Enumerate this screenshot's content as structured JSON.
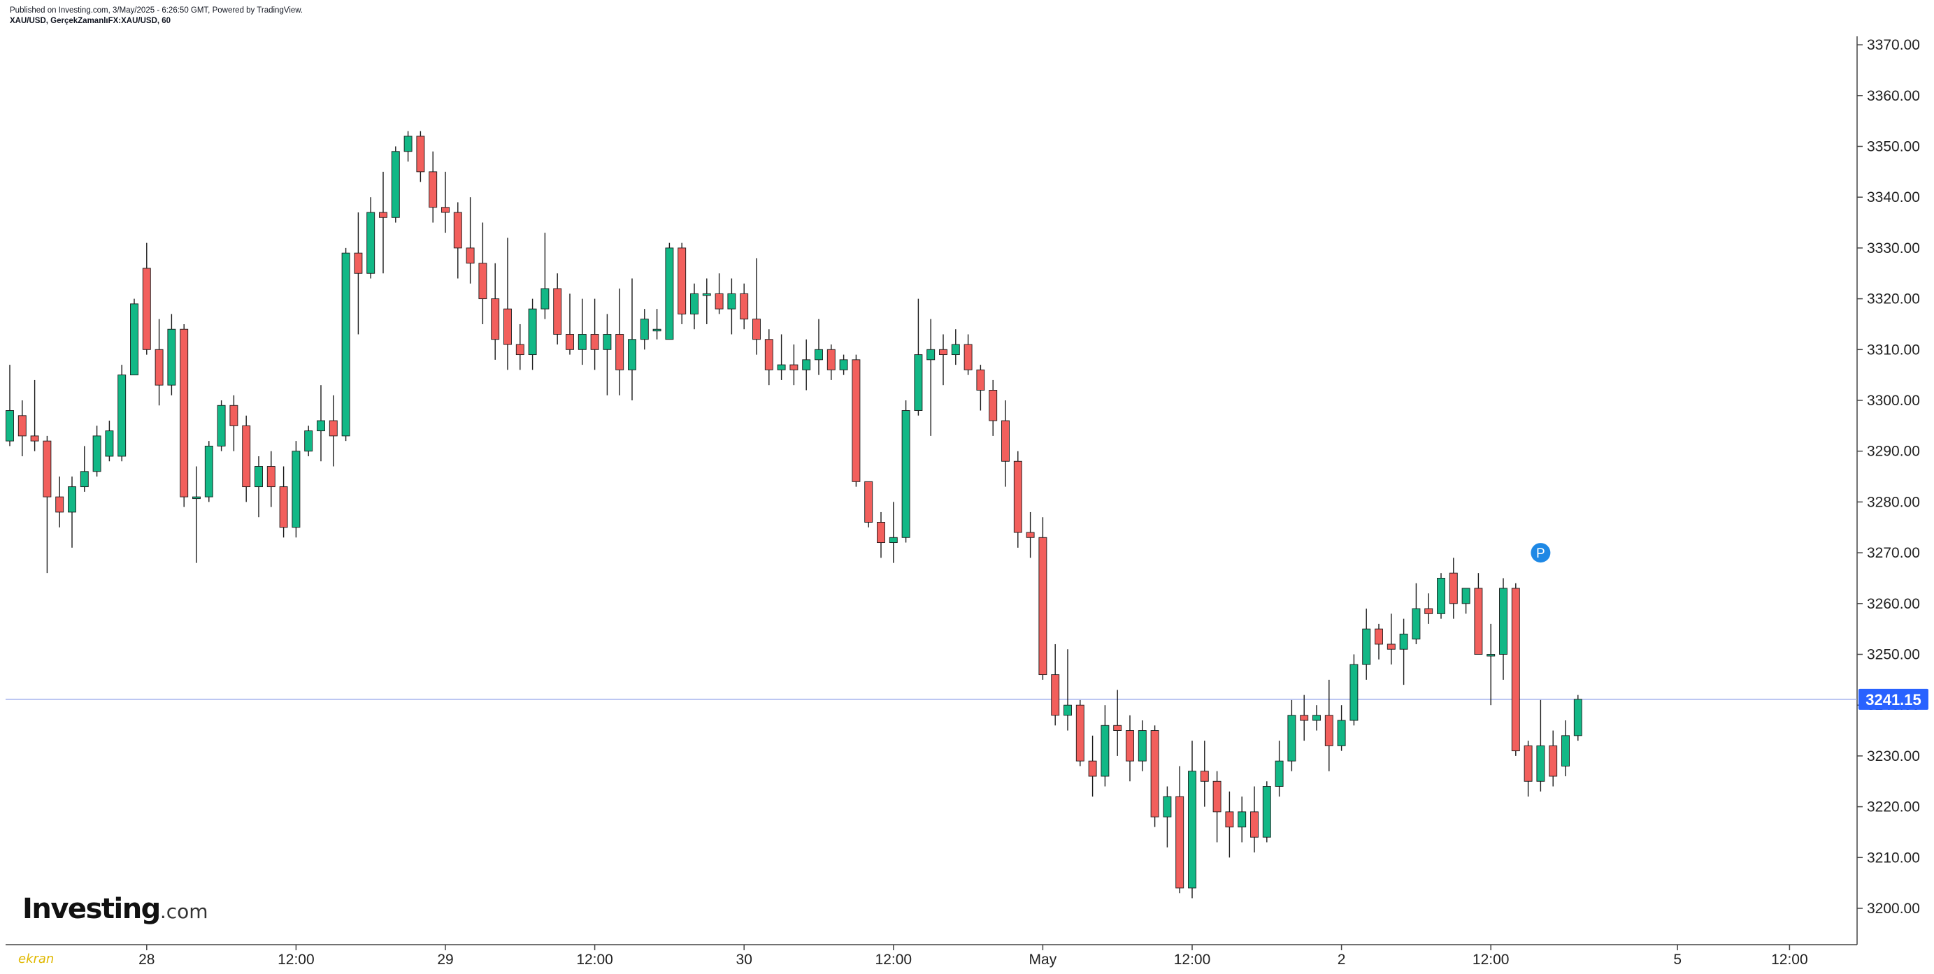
{
  "header": {
    "published": "Published on Investing.com, 3/May/2025 - 6:26:50 GMT, Powered by TradingView.",
    "symbol": "XAU/USD, GerçekZamanlıFX:XAU/USD, 60"
  },
  "logo": {
    "main": "Investing",
    "suffix": ".com"
  },
  "watermark": "ekran",
  "colors": {
    "up": "#12b886",
    "down": "#f25f5c",
    "wick": "#1b1b1b",
    "axis": "#444444",
    "price_line": "#8fa0e8",
    "price_label_bg": "#2962ff",
    "marker": "#1e88e5"
  },
  "chart_data": {
    "type": "candlestick",
    "title": "XAU/USD, GerçekZamanlıFX:XAU/USD, 60",
    "ylim": [
      3194,
      3373
    ],
    "y_ticks": [
      3200,
      3210,
      3220,
      3230,
      3240,
      3250,
      3260,
      3270,
      3280,
      3290,
      3300,
      3310,
      3320,
      3330,
      3340,
      3350,
      3360,
      3370
    ],
    "x_ticks": [
      {
        "index": 11,
        "label": "28"
      },
      {
        "index": 23,
        "label": "12:00"
      },
      {
        "index": 35,
        "label": "29"
      },
      {
        "index": 47,
        "label": "12:00"
      },
      {
        "index": 59,
        "label": "30"
      },
      {
        "index": 71,
        "label": "12:00"
      },
      {
        "index": 83,
        "label": "May"
      },
      {
        "index": 95,
        "label": "12:00"
      },
      {
        "index": 107,
        "label": "2"
      },
      {
        "index": 119,
        "label": "12:00"
      },
      {
        "index": 134,
        "label": "5"
      },
      {
        "index": 143,
        "label": "12:00"
      }
    ],
    "last_price": 3241.15,
    "last_price_label": "3241.15",
    "marker_label": "P",
    "marker": {
      "index": 123,
      "price": 3270
    },
    "candles": [
      [
        3292,
        3298,
        3291,
        3307
      ],
      [
        3297,
        3293,
        3289,
        3300
      ],
      [
        3293,
        3292,
        3290,
        3304
      ],
      [
        3292,
        3281,
        3266,
        3293
      ],
      [
        3281,
        3278,
        3275,
        3285
      ],
      [
        3278,
        3283,
        3271,
        3285
      ],
      [
        3283,
        3286,
        3282,
        3291
      ],
      [
        3286,
        3293,
        3285,
        3295
      ],
      [
        3289,
        3294,
        3288,
        3296
      ],
      [
        3289,
        3305,
        3288,
        3307
      ],
      [
        3305,
        3319,
        3305,
        3320
      ],
      [
        3326,
        3310,
        3309,
        3331
      ],
      [
        3310,
        3303,
        3299,
        3316
      ],
      [
        3303,
        3314,
        3301,
        3317
      ],
      [
        3314,
        3281,
        3279,
        3315
      ],
      [
        3281,
        3281,
        3268,
        3287
      ],
      [
        3281,
        3291,
        3280,
        3292
      ],
      [
        3291,
        3299,
        3290,
        3300
      ],
      [
        3299,
        3295,
        3290,
        3301
      ],
      [
        3295,
        3283,
        3280,
        3297
      ],
      [
        3283,
        3287,
        3277,
        3289
      ],
      [
        3287,
        3283,
        3279,
        3290
      ],
      [
        3283,
        3275,
        3273,
        3287
      ],
      [
        3275,
        3290,
        3273,
        3292
      ],
      [
        3290,
        3294,
        3289,
        3295
      ],
      [
        3294,
        3296,
        3288,
        3303
      ],
      [
        3296,
        3293,
        3287,
        3301
      ],
      [
        3293,
        3329,
        3292,
        3330
      ],
      [
        3329,
        3325,
        3313,
        3337
      ],
      [
        3325,
        3337,
        3324,
        3340
      ],
      [
        3337,
        3336,
        3325,
        3345
      ],
      [
        3336,
        3349,
        3335,
        3350
      ],
      [
        3349,
        3352,
        3347,
        3353
      ],
      [
        3352,
        3345,
        3343,
        3353
      ],
      [
        3345,
        3338,
        3335,
        3349
      ],
      [
        3338,
        3337,
        3333,
        3345
      ],
      [
        3337,
        3330,
        3324,
        3339
      ],
      [
        3330,
        3327,
        3323,
        3340
      ],
      [
        3327,
        3320,
        3315,
        3335
      ],
      [
        3320,
        3312,
        3308,
        3327
      ],
      [
        3318,
        3311,
        3306,
        3332
      ],
      [
        3311,
        3309,
        3306,
        3315
      ],
      [
        3309,
        3318,
        3306,
        3320
      ],
      [
        3318,
        3322,
        3316,
        3333
      ],
      [
        3322,
        3313,
        3311,
        3325
      ],
      [
        3313,
        3310,
        3309,
        3321
      ],
      [
        3310,
        3313,
        3307,
        3320
      ],
      [
        3313,
        3310,
        3306,
        3320
      ],
      [
        3310,
        3313,
        3301,
        3317
      ],
      [
        3313,
        3306,
        3301,
        3322
      ],
      [
        3306,
        3312,
        3300,
        3324
      ],
      [
        3312,
        3316,
        3310,
        3318
      ],
      [
        3314,
        3314,
        3312,
        3318
      ],
      [
        3312,
        3330,
        3312,
        3331
      ],
      [
        3330,
        3317,
        3315,
        3331
      ],
      [
        3317,
        3321,
        3314,
        3323
      ],
      [
        3321,
        3321,
        3315,
        3324
      ],
      [
        3321,
        3318,
        3317,
        3325
      ],
      [
        3318,
        3321,
        3313,
        3324
      ],
      [
        3321,
        3316,
        3314,
        3323
      ],
      [
        3316,
        3312,
        3309,
        3328
      ],
      [
        3312,
        3306,
        3303,
        3314
      ],
      [
        3306,
        3307,
        3304,
        3313
      ],
      [
        3307,
        3306,
        3303,
        3311
      ],
      [
        3306,
        3308,
        3302,
        3312
      ],
      [
        3308,
        3310,
        3305,
        3316
      ],
      [
        3310,
        3306,
        3304,
        3311
      ],
      [
        3306,
        3308,
        3305,
        3309
      ],
      [
        3308,
        3284,
        3283,
        3309
      ],
      [
        3284,
        3276,
        3275,
        3284
      ],
      [
        3276,
        3272,
        3269,
        3278
      ],
      [
        3272,
        3273,
        3268,
        3280
      ],
      [
        3273,
        3298,
        3272,
        3300
      ],
      [
        3298,
        3309,
        3297,
        3320
      ],
      [
        3308,
        3310,
        3293,
        3316
      ],
      [
        3310,
        3309,
        3303,
        3313
      ],
      [
        3309,
        3311,
        3307,
        3314
      ],
      [
        3311,
        3306,
        3305,
        3313
      ],
      [
        3306,
        3302,
        3298,
        3307
      ],
      [
        3302,
        3296,
        3293,
        3304
      ],
      [
        3296,
        3288,
        3283,
        3300
      ],
      [
        3288,
        3274,
        3271,
        3290
      ],
      [
        3274,
        3273,
        3269,
        3278
      ],
      [
        3273,
        3246,
        3245,
        3277
      ],
      [
        3246,
        3238,
        3236,
        3252
      ],
      [
        3238,
        3240,
        3235,
        3251
      ],
      [
        3240,
        3229,
        3228,
        3241
      ],
      [
        3229,
        3226,
        3222,
        3234
      ],
      [
        3226,
        3236,
        3224,
        3240
      ],
      [
        3236,
        3235,
        3230,
        3243
      ],
      [
        3235,
        3229,
        3225,
        3238
      ],
      [
        3229,
        3235,
        3227,
        3237
      ],
      [
        3235,
        3218,
        3216,
        3236
      ],
      [
        3218,
        3222,
        3212,
        3224
      ],
      [
        3222,
        3204,
        3203,
        3228
      ],
      [
        3204,
        3227,
        3202,
        3233
      ],
      [
        3227,
        3225,
        3220,
        3233
      ],
      [
        3225,
        3219,
        3213,
        3227
      ],
      [
        3219,
        3216,
        3210,
        3223
      ],
      [
        3216,
        3219,
        3213,
        3222
      ],
      [
        3219,
        3214,
        3211,
        3224
      ],
      [
        3214,
        3224,
        3213,
        3225
      ],
      [
        3224,
        3229,
        3222,
        3233
      ],
      [
        3229,
        3238,
        3227,
        3241
      ],
      [
        3238,
        3237,
        3233,
        3242
      ],
      [
        3237,
        3238,
        3235,
        3240
      ],
      [
        3238,
        3232,
        3227,
        3245
      ],
      [
        3232,
        3237,
        3231,
        3240
      ],
      [
        3237,
        3248,
        3236,
        3250
      ],
      [
        3248,
        3255,
        3245,
        3259
      ],
      [
        3255,
        3252,
        3249,
        3256
      ],
      [
        3252,
        3251,
        3248,
        3258
      ],
      [
        3251,
        3254,
        3244,
        3257
      ],
      [
        3253,
        3259,
        3252,
        3264
      ],
      [
        3259,
        3258,
        3256,
        3262
      ],
      [
        3258,
        3265,
        3257,
        3266
      ],
      [
        3266,
        3260,
        3257,
        3269
      ],
      [
        3260,
        3263,
        3258,
        3263
      ],
      [
        3263,
        3250,
        3250,
        3266
      ],
      [
        3250,
        3250,
        3240,
        3256
      ],
      [
        3250,
        3263,
        3245,
        3265
      ],
      [
        3263,
        3231,
        3230,
        3264
      ],
      [
        3232,
        3225,
        3222,
        3233
      ],
      [
        3225,
        3232,
        3223,
        3241
      ],
      [
        3232,
        3226,
        3224,
        3235
      ],
      [
        3228,
        3234,
        3226,
        3237
      ],
      [
        3234,
        3241.15,
        3233,
        3242
      ]
    ]
  }
}
